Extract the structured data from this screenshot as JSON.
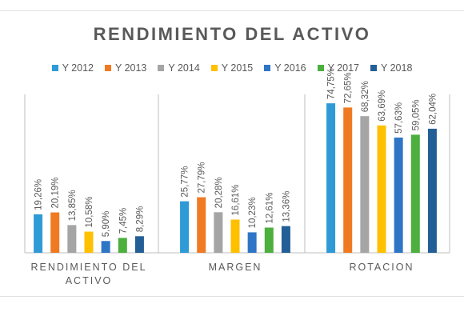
{
  "colors": {
    "series": [
      "#2e9bd6",
      "#f07a22",
      "#a5a5a5",
      "#ffc000",
      "#2e75c6",
      "#4caf3e",
      "#235f96"
    ],
    "axis": "#bfbfbf",
    "text": "#595959"
  },
  "chart_data": {
    "type": "bar",
    "title": "RENDIMIENTO DEL ACTIVO",
    "categories": [
      "RENDIMIENTO DEL ACTIVO",
      "MARGEN",
      "ROTACION"
    ],
    "category_labels": [
      [
        "RENDIMIENTO DEL",
        "ACTIVO"
      ],
      [
        "MARGEN"
      ],
      [
        "ROTACION"
      ]
    ],
    "series": [
      {
        "name": "Y 2012",
        "values": [
          19.26,
          25.77,
          74.75
        ],
        "labels": [
          "19,26%",
          "25,77%",
          "74,75%"
        ]
      },
      {
        "name": "Y 2013",
        "values": [
          20.19,
          27.79,
          72.65
        ],
        "labels": [
          "20,19%",
          "27,79%",
          "72,65%"
        ]
      },
      {
        "name": "Y 2014",
        "values": [
          13.85,
          20.28,
          68.32
        ],
        "labels": [
          "13,85%",
          "20,28%",
          "68,32%"
        ]
      },
      {
        "name": "Y 2015",
        "values": [
          10.58,
          16.61,
          63.69
        ],
        "labels": [
          "10,58%",
          "16,61%",
          "63,69%"
        ]
      },
      {
        "name": "Y 2016",
        "values": [
          5.9,
          10.23,
          57.63
        ],
        "labels": [
          "5,90%",
          "10,23%",
          "57,63%"
        ]
      },
      {
        "name": "Y 2017",
        "values": [
          7.45,
          12.61,
          59.05
        ],
        "labels": [
          "7,45%",
          "12,61%",
          "59,05%"
        ]
      },
      {
        "name": "Y 2018",
        "values": [
          8.29,
          13.36,
          62.04
        ],
        "labels": [
          "8,29%",
          "13,36%",
          "62,04%"
        ]
      }
    ],
    "ylim": [
      0,
      80
    ],
    "legend": "top",
    "grid": false
  }
}
